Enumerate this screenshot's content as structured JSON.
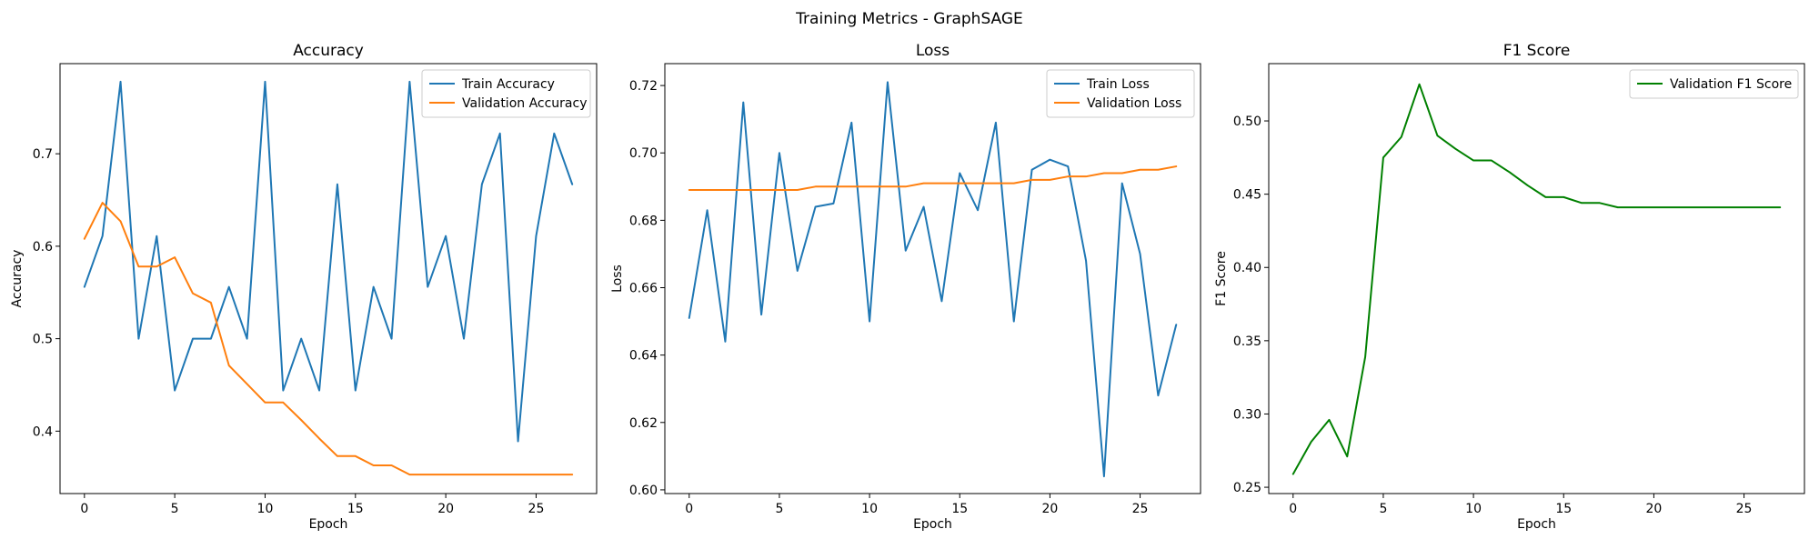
{
  "figure": {
    "suptitle": "Training Metrics - GraphSAGE"
  },
  "chart_data": [
    {
      "type": "line",
      "title": "Accuracy",
      "xlabel": "Epoch",
      "ylabel": "Accuracy",
      "xlim": [
        -1.35,
        28.35
      ],
      "ylim": [
        0.3325,
        0.7975
      ],
      "xticks": [
        0,
        5,
        10,
        15,
        20,
        25
      ],
      "yticks": [
        0.4,
        0.5,
        0.6,
        0.7
      ],
      "ytick_labels": [
        "0.4",
        "0.5",
        "0.6",
        "0.7"
      ],
      "grid": false,
      "legend_position": "top-right",
      "x": [
        0,
        1,
        2,
        3,
        4,
        5,
        6,
        7,
        8,
        9,
        10,
        11,
        12,
        13,
        14,
        15,
        16,
        17,
        18,
        19,
        20,
        21,
        22,
        23,
        24,
        25,
        26,
        27
      ],
      "series": [
        {
          "name": "Train Accuracy",
          "color": "#1f77b4",
          "values": [
            0.556,
            0.611,
            0.778,
            0.5,
            0.611,
            0.444,
            0.5,
            0.5,
            0.556,
            0.5,
            0.778,
            0.444,
            0.5,
            0.444,
            0.667,
            0.444,
            0.556,
            0.5,
            0.778,
            0.556,
            0.611,
            0.5,
            0.667,
            0.722,
            0.389,
            0.611,
            0.722,
            0.667
          ]
        },
        {
          "name": "Validation Accuracy",
          "color": "#ff7f0e",
          "values": [
            0.608,
            0.647,
            0.627,
            0.578,
            0.578,
            0.588,
            0.549,
            0.539,
            0.471,
            0.451,
            0.431,
            0.431,
            0.412,
            0.392,
            0.373,
            0.373,
            0.363,
            0.363,
            0.353,
            0.353,
            0.353,
            0.353,
            0.353,
            0.353,
            0.353,
            0.353,
            0.353,
            0.353
          ]
        }
      ]
    },
    {
      "type": "line",
      "title": "Loss",
      "xlabel": "Epoch",
      "ylabel": "Loss",
      "xlim": [
        -1.35,
        28.35
      ],
      "ylim": [
        0.5989,
        0.7265
      ],
      "xticks": [
        0,
        5,
        10,
        15,
        20,
        25
      ],
      "yticks": [
        0.6,
        0.62,
        0.64,
        0.66,
        0.68,
        0.7,
        0.72
      ],
      "ytick_labels": [
        "0.60",
        "0.62",
        "0.64",
        "0.66",
        "0.68",
        "0.70",
        "0.72"
      ],
      "grid": false,
      "legend_position": "top-right",
      "x": [
        0,
        1,
        2,
        3,
        4,
        5,
        6,
        7,
        8,
        9,
        10,
        11,
        12,
        13,
        14,
        15,
        16,
        17,
        18,
        19,
        20,
        21,
        22,
        23,
        24,
        25,
        26,
        27
      ],
      "series": [
        {
          "name": "Train Loss",
          "color": "#1f77b4",
          "values": [
            0.651,
            0.683,
            0.644,
            0.715,
            0.652,
            0.7,
            0.665,
            0.684,
            0.685,
            0.709,
            0.65,
            0.721,
            0.671,
            0.684,
            0.656,
            0.694,
            0.683,
            0.709,
            0.65,
            0.695,
            0.698,
            0.696,
            0.668,
            0.604,
            0.691,
            0.67,
            0.628,
            0.649
          ]
        },
        {
          "name": "Validation Loss",
          "color": "#ff7f0e",
          "values": [
            0.689,
            0.689,
            0.689,
            0.689,
            0.689,
            0.689,
            0.689,
            0.69,
            0.69,
            0.69,
            0.69,
            0.69,
            0.69,
            0.691,
            0.691,
            0.691,
            0.691,
            0.691,
            0.691,
            0.692,
            0.692,
            0.693,
            0.693,
            0.694,
            0.694,
            0.695,
            0.695,
            0.696
          ]
        }
      ]
    },
    {
      "type": "line",
      "title": "F1 Score",
      "xlabel": "Epoch",
      "ylabel": "F1 Score",
      "xlim": [
        -1.35,
        28.35
      ],
      "ylim": [
        0.2457,
        0.5391
      ],
      "xticks": [
        0,
        5,
        10,
        15,
        20,
        25
      ],
      "yticks": [
        0.25,
        0.3,
        0.35,
        0.4,
        0.45,
        0.5
      ],
      "ytick_labels": [
        "0.25",
        "0.30",
        "0.35",
        "0.40",
        "0.45",
        "0.50"
      ],
      "grid": false,
      "legend_position": "top-right",
      "x": [
        0,
        1,
        2,
        3,
        4,
        5,
        6,
        7,
        8,
        9,
        10,
        11,
        12,
        13,
        14,
        15,
        16,
        17,
        18,
        19,
        20,
        21,
        22,
        23,
        24,
        25,
        26,
        27
      ],
      "series": [
        {
          "name": "Validation F1 Score",
          "color": "#008000",
          "values": [
            0.259,
            0.281,
            0.296,
            0.271,
            0.339,
            0.475,
            0.489,
            0.525,
            0.49,
            0.481,
            0.473,
            0.473,
            0.465,
            0.456,
            0.448,
            0.448,
            0.444,
            0.444,
            0.441,
            0.441,
            0.441,
            0.441,
            0.441,
            0.441,
            0.441,
            0.441,
            0.441,
            0.441
          ]
        }
      ]
    }
  ]
}
